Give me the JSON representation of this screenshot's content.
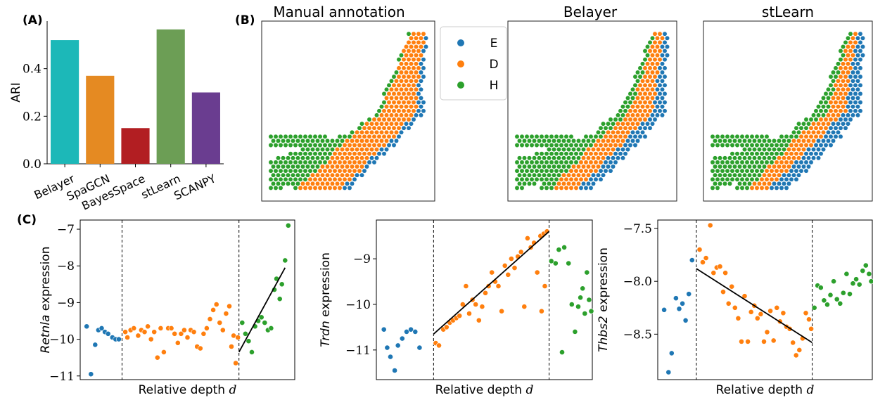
{
  "panel_labels": {
    "a": "(A)",
    "b": "(B)",
    "c": "(C)"
  },
  "colors": {
    "E": "#1f77b4",
    "D": "#ff7f0e",
    "H": "#2ca02c"
  },
  "legend": {
    "items": [
      {
        "key": "E",
        "label": "E"
      },
      {
        "key": "D",
        "label": "D"
      },
      {
        "key": "H",
        "label": "H"
      }
    ]
  },
  "maps": {
    "titles": [
      "Manual annotation",
      "Belayer",
      "stLearn"
    ]
  },
  "chart_data": [
    {
      "type": "bar",
      "categories": [
        "Belayer",
        "SpaGCN",
        "BayesSpace",
        "stLearn",
        "SCANPY"
      ],
      "values": [
        0.52,
        0.37,
        0.15,
        0.565,
        0.3
      ],
      "colors": [
        "#1cb8b8",
        "#e58a22",
        "#b21e22",
        "#6c9e55",
        "#6a3d90"
      ],
      "ylabel": "ARI",
      "ylim": [
        0,
        0.6
      ],
      "yticks": [
        "0.0",
        "0.2",
        "0.4"
      ]
    },
    {
      "type": "scatter",
      "xlabel_text": "Relative depth ",
      "xlabel_var": "d",
      "ylabel_gene": "Retnla",
      "ylabel_rest": " expression",
      "ylim": [
        -11.1,
        -6.75
      ],
      "yticks": [
        -11,
        -10,
        -9,
        -8,
        -7
      ],
      "ytick_labels": [
        "−11",
        "−10",
        "−9",
        "−8",
        "−7"
      ],
      "xlim": [
        0,
        1
      ],
      "boundaries": [
        0.195,
        0.74
      ],
      "fit": [
        [
          0.74,
          -10.35
        ],
        [
          0.955,
          -8.05
        ]
      ],
      "points": {
        "E": [
          [
            0.03,
            -9.65
          ],
          [
            0.05,
            -10.95
          ],
          [
            0.07,
            -10.15
          ],
          [
            0.085,
            -9.75
          ],
          [
            0.1,
            -9.7
          ],
          [
            0.115,
            -9.8
          ],
          [
            0.13,
            -9.85
          ],
          [
            0.15,
            -9.95
          ],
          [
            0.165,
            -10.0
          ],
          [
            0.18,
            -10.0
          ]
        ],
        "D": [
          [
            0.21,
            -9.8
          ],
          [
            0.22,
            -9.95
          ],
          [
            0.235,
            -9.75
          ],
          [
            0.25,
            -9.7
          ],
          [
            0.27,
            -9.9
          ],
          [
            0.285,
            -9.75
          ],
          [
            0.3,
            -9.8
          ],
          [
            0.315,
            -9.65
          ],
          [
            0.33,
            -10.0
          ],
          [
            0.345,
            -9.8
          ],
          [
            0.36,
            -10.5
          ],
          [
            0.375,
            -9.7
          ],
          [
            0.39,
            -10.35
          ],
          [
            0.41,
            -9.7
          ],
          [
            0.425,
            -9.7
          ],
          [
            0.44,
            -9.85
          ],
          [
            0.455,
            -10.1
          ],
          [
            0.47,
            -9.85
          ],
          [
            0.485,
            -9.75
          ],
          [
            0.5,
            -9.95
          ],
          [
            0.515,
            -9.75
          ],
          [
            0.53,
            -9.8
          ],
          [
            0.545,
            -10.2
          ],
          [
            0.56,
            -10.25
          ],
          [
            0.575,
            -9.85
          ],
          [
            0.59,
            -9.7
          ],
          [
            0.605,
            -9.45
          ],
          [
            0.62,
            -9.2
          ],
          [
            0.635,
            -9.05
          ],
          [
            0.65,
            -9.55
          ],
          [
            0.665,
            -9.75
          ],
          [
            0.68,
            -9.3
          ],
          [
            0.695,
            -9.1
          ],
          [
            0.705,
            -10.2
          ],
          [
            0.715,
            -9.9
          ],
          [
            0.725,
            -10.65
          ],
          [
            0.735,
            -9.95
          ]
        ],
        "H": [
          [
            0.755,
            -9.55
          ],
          [
            0.77,
            -9.85
          ],
          [
            0.785,
            -10.05
          ],
          [
            0.8,
            -10.35
          ],
          [
            0.815,
            -9.65
          ],
          [
            0.83,
            -9.5
          ],
          [
            0.845,
            -9.4
          ],
          [
            0.86,
            -9.55
          ],
          [
            0.875,
            -9.75
          ],
          [
            0.89,
            -9.7
          ],
          [
            0.905,
            -8.65
          ],
          [
            0.915,
            -8.35
          ],
          [
            0.93,
            -8.9
          ],
          [
            0.94,
            -8.5
          ],
          [
            0.955,
            -7.85
          ],
          [
            0.97,
            -6.9
          ]
        ]
      }
    },
    {
      "type": "scatter",
      "xlabel_text": "Relative depth ",
      "xlabel_var": "d",
      "ylabel_gene": "Trdn",
      "ylabel_rest": " expression",
      "ylim": [
        -11.65,
        -8.15
      ],
      "yticks": [
        -11,
        -10,
        -9
      ],
      "ytick_labels": [
        "−11",
        "−10",
        "−9"
      ],
      "xlim": [
        0,
        1
      ],
      "boundaries": [
        0.265,
        0.8
      ],
      "fit": [
        [
          0.265,
          -10.65
        ],
        [
          0.8,
          -8.4
        ]
      ],
      "points": {
        "E": [
          [
            0.035,
            -10.55
          ],
          [
            0.05,
            -10.95
          ],
          [
            0.065,
            -11.15
          ],
          [
            0.085,
            -11.45
          ],
          [
            0.1,
            -10.9
          ],
          [
            0.12,
            -10.75
          ],
          [
            0.14,
            -10.6
          ],
          [
            0.16,
            -10.55
          ],
          [
            0.18,
            -10.6
          ],
          [
            0.2,
            -10.95
          ]
        ],
        "D": [
          [
            0.275,
            -10.85
          ],
          [
            0.29,
            -10.9
          ],
          [
            0.31,
            -10.55
          ],
          [
            0.325,
            -10.5
          ],
          [
            0.34,
            -10.4
          ],
          [
            0.355,
            -10.35
          ],
          [
            0.37,
            -10.3
          ],
          [
            0.385,
            -10.25
          ],
          [
            0.4,
            -10.0
          ],
          [
            0.415,
            -9.6
          ],
          [
            0.43,
            -10.2
          ],
          [
            0.445,
            -9.9
          ],
          [
            0.46,
            -10.0
          ],
          [
            0.475,
            -10.35
          ],
          [
            0.49,
            -10.05
          ],
          [
            0.505,
            -9.75
          ],
          [
            0.52,
            -9.6
          ],
          [
            0.535,
            -9.3
          ],
          [
            0.55,
            -9.5
          ],
          [
            0.565,
            -9.6
          ],
          [
            0.58,
            -10.15
          ],
          [
            0.595,
            -9.15
          ],
          [
            0.61,
            -9.35
          ],
          [
            0.625,
            -9.0
          ],
          [
            0.64,
            -9.2
          ],
          [
            0.655,
            -8.95
          ],
          [
            0.67,
            -8.85
          ],
          [
            0.685,
            -10.05
          ],
          [
            0.7,
            -8.55
          ],
          [
            0.715,
            -8.75
          ],
          [
            0.73,
            -8.65
          ],
          [
            0.745,
            -9.3
          ],
          [
            0.76,
            -8.5
          ],
          [
            0.775,
            -8.45
          ],
          [
            0.79,
            -8.4
          ],
          [
            0.78,
            -9.6
          ],
          [
            0.765,
            -10.15
          ]
        ],
        "H": [
          [
            0.81,
            -9.05
          ],
          [
            0.83,
            -9.1
          ],
          [
            0.845,
            -8.8
          ],
          [
            0.86,
            -11.05
          ],
          [
            0.87,
            -8.75
          ],
          [
            0.89,
            -9.1
          ],
          [
            0.905,
            -10.0
          ],
          [
            0.92,
            -10.6
          ],
          [
            0.935,
            -10.05
          ],
          [
            0.945,
            -9.85
          ],
          [
            0.955,
            -9.65
          ],
          [
            0.965,
            -10.2
          ],
          [
            0.975,
            -9.3
          ],
          [
            0.985,
            -9.9
          ],
          [
            0.995,
            -10.15
          ]
        ]
      }
    },
    {
      "type": "scatter",
      "xlabel_text": "Relative depth ",
      "xlabel_var": "d",
      "ylabel_gene": "Thbs2",
      "ylabel_rest": " expression",
      "ylim": [
        -8.93,
        -7.42
      ],
      "yticks": [
        -8.5,
        -8.0,
        -7.5
      ],
      "ytick_labels": [
        "−8.5",
        "−8.0",
        "−7.5"
      ],
      "xlim": [
        0,
        1
      ],
      "boundaries": [
        0.18,
        0.72
      ],
      "fit": [
        [
          0.18,
          -7.88
        ],
        [
          0.72,
          -8.58
        ]
      ],
      "points": {
        "E": [
          [
            0.03,
            -8.27
          ],
          [
            0.05,
            -8.86
          ],
          [
            0.065,
            -8.68
          ],
          [
            0.085,
            -8.16
          ],
          [
            0.1,
            -8.26
          ],
          [
            0.115,
            -8.21
          ],
          [
            0.13,
            -8.37
          ],
          [
            0.145,
            -8.12
          ],
          [
            0.16,
            -7.8
          ]
        ],
        "D": [
          [
            0.195,
            -7.7
          ],
          [
            0.21,
            -7.82
          ],
          [
            0.225,
            -7.78
          ],
          [
            0.245,
            -7.47
          ],
          [
            0.26,
            -7.92
          ],
          [
            0.275,
            -7.87
          ],
          [
            0.29,
            -7.86
          ],
          [
            0.305,
            -8.1
          ],
          [
            0.315,
            -7.92
          ],
          [
            0.33,
            -8.21
          ],
          [
            0.345,
            -8.05
          ],
          [
            0.36,
            -8.25
          ],
          [
            0.375,
            -8.35
          ],
          [
            0.39,
            -8.57
          ],
          [
            0.405,
            -8.14
          ],
          [
            0.42,
            -8.57
          ],
          [
            0.435,
            -8.29
          ],
          [
            0.45,
            -8.23
          ],
          [
            0.465,
            -8.35
          ],
          [
            0.48,
            -8.31
          ],
          [
            0.495,
            -8.57
          ],
          [
            0.51,
            -8.48
          ],
          [
            0.525,
            -8.28
          ],
          [
            0.54,
            -8.56
          ],
          [
            0.555,
            -8.25
          ],
          [
            0.57,
            -8.38
          ],
          [
            0.585,
            -8.3
          ],
          [
            0.6,
            -8.43
          ],
          [
            0.615,
            -8.45
          ],
          [
            0.63,
            -8.58
          ],
          [
            0.645,
            -8.7
          ],
          [
            0.66,
            -8.65
          ],
          [
            0.675,
            -8.54
          ],
          [
            0.69,
            -8.3
          ],
          [
            0.705,
            -8.36
          ],
          [
            0.715,
            -8.45
          ]
        ],
        "H": [
          [
            0.73,
            -8.25
          ],
          [
            0.745,
            -8.04
          ],
          [
            0.76,
            -8.06
          ],
          [
            0.775,
            -8.18
          ],
          [
            0.79,
            -8.22
          ],
          [
            0.805,
            -8.13
          ],
          [
            0.82,
            -8.0
          ],
          [
            0.835,
            -8.17
          ],
          [
            0.85,
            -8.21
          ],
          [
            0.865,
            -8.11
          ],
          [
            0.88,
            -7.93
          ],
          [
            0.895,
            -8.12
          ],
          [
            0.91,
            -8.02
          ],
          [
            0.925,
            -7.98
          ],
          [
            0.94,
            -8.03
          ],
          [
            0.955,
            -7.9
          ],
          [
            0.97,
            -7.85
          ],
          [
            0.985,
            -7.93
          ],
          [
            0.995,
            -8.0
          ]
        ]
      }
    }
  ]
}
